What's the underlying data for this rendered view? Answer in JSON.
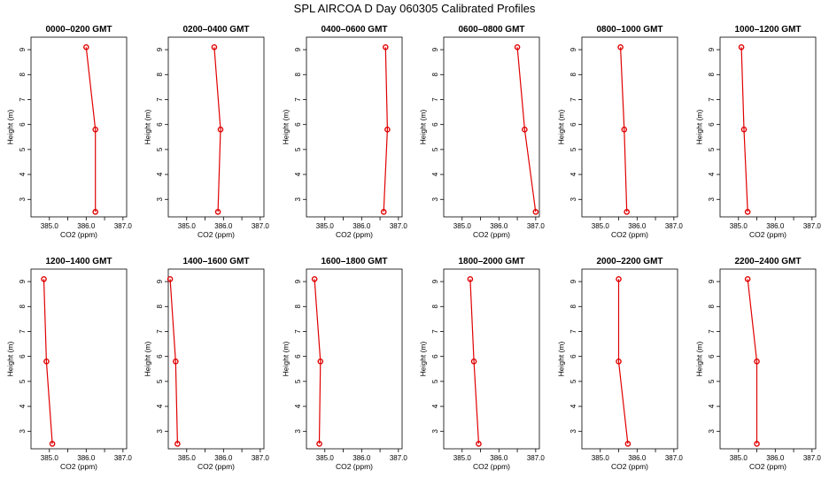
{
  "figure_title": "SPL AIRCOA D  Day 060305  Calibrated Profiles",
  "chart_data": [
    {
      "type": "line",
      "title": "0000–0200 GMT",
      "xlabel": "CO2 (ppm)",
      "ylabel": "Height (m)",
      "xlim": [
        384.5,
        387.1
      ],
      "ylim": [
        2.3,
        9.5
      ],
      "xticks": [
        385.0,
        386.0,
        387.0
      ],
      "xtick_labels": [
        "385.0",
        "386.0",
        "387.0"
      ],
      "yticks": [
        3,
        4,
        5,
        6,
        7,
        8,
        9
      ],
      "x": [
        386.0,
        386.25,
        386.25
      ],
      "y": [
        9.1,
        5.8,
        2.5
      ]
    },
    {
      "type": "line",
      "title": "0200–0400 GMT",
      "xlabel": "CO2 (ppm)",
      "ylabel": "Height (m)",
      "xlim": [
        384.5,
        387.1
      ],
      "ylim": [
        2.3,
        9.5
      ],
      "xticks": [
        385.0,
        386.0,
        387.0
      ],
      "xtick_labels": [
        "385.0",
        "386.0",
        "387.0"
      ],
      "yticks": [
        3,
        4,
        5,
        6,
        7,
        8,
        9
      ],
      "x": [
        385.75,
        385.92,
        385.85
      ],
      "y": [
        9.1,
        5.8,
        2.5
      ]
    },
    {
      "type": "line",
      "title": "0400–0600 GMT",
      "xlabel": "CO2 (ppm)",
      "ylabel": "Height (m)",
      "xlim": [
        384.5,
        387.1
      ],
      "ylim": [
        2.3,
        9.5
      ],
      "xticks": [
        385.0,
        386.0,
        387.0
      ],
      "xtick_labels": [
        "385.0",
        "386.0",
        "387.0"
      ],
      "yticks": [
        3,
        4,
        5,
        6,
        7,
        8,
        9
      ],
      "x": [
        386.65,
        386.7,
        386.6
      ],
      "y": [
        9.1,
        5.8,
        2.5
      ]
    },
    {
      "type": "line",
      "title": "0600–0800 GMT",
      "xlabel": "CO2 (ppm)",
      "ylabel": "Height (m)",
      "xlim": [
        384.5,
        387.1
      ],
      "ylim": [
        2.3,
        9.5
      ],
      "xticks": [
        385.0,
        386.0,
        387.0
      ],
      "xtick_labels": [
        "385.0",
        "386.0",
        "387.0"
      ],
      "yticks": [
        3,
        4,
        5,
        6,
        7,
        8,
        9
      ],
      "x": [
        386.5,
        386.7,
        387.0
      ],
      "y": [
        9.1,
        5.8,
        2.5
      ]
    },
    {
      "type": "line",
      "title": "0800–1000 GMT",
      "xlabel": "CO2 (ppm)",
      "ylabel": "Height (m)",
      "xlim": [
        384.5,
        387.1
      ],
      "ylim": [
        2.3,
        9.5
      ],
      "xticks": [
        385.0,
        386.0,
        387.0
      ],
      "xtick_labels": [
        "385.0",
        "386.0",
        "387.0"
      ],
      "yticks": [
        3,
        4,
        5,
        6,
        7,
        8,
        9
      ],
      "x": [
        385.55,
        385.65,
        385.72
      ],
      "y": [
        9.1,
        5.8,
        2.5
      ]
    },
    {
      "type": "line",
      "title": "1000–1200 GMT",
      "xlabel": "CO2 (ppm)",
      "ylabel": "Height (m)",
      "xlim": [
        384.5,
        387.1
      ],
      "ylim": [
        2.3,
        9.5
      ],
      "xticks": [
        385.0,
        386.0,
        387.0
      ],
      "xtick_labels": [
        "385.0",
        "386.0",
        "387.0"
      ],
      "yticks": [
        3,
        4,
        5,
        6,
        7,
        8,
        9
      ],
      "x": [
        385.08,
        385.15,
        385.25
      ],
      "y": [
        9.1,
        5.8,
        2.5
      ]
    },
    {
      "type": "line",
      "title": "1200–1400 GMT",
      "xlabel": "CO2 (ppm)",
      "ylabel": "Height (m)",
      "xlim": [
        384.5,
        387.1
      ],
      "ylim": [
        2.3,
        9.5
      ],
      "xticks": [
        385.0,
        386.0,
        387.0
      ],
      "xtick_labels": [
        "385.0",
        "386.0",
        "387.0"
      ],
      "yticks": [
        3,
        4,
        5,
        6,
        7,
        8,
        9
      ],
      "x": [
        384.85,
        384.92,
        385.08
      ],
      "y": [
        9.1,
        5.8,
        2.5
      ]
    },
    {
      "type": "line",
      "title": "1400–1600 GMT",
      "xlabel": "CO2 (ppm)",
      "ylabel": "Height (m)",
      "xlim": [
        384.5,
        387.1
      ],
      "ylim": [
        2.3,
        9.5
      ],
      "xticks": [
        385.0,
        386.0,
        387.0
      ],
      "xtick_labels": [
        "385.0",
        "386.0",
        "387.0"
      ],
      "yticks": [
        3,
        4,
        5,
        6,
        7,
        8,
        9
      ],
      "x": [
        384.55,
        384.7,
        384.75
      ],
      "y": [
        9.1,
        5.8,
        2.5
      ]
    },
    {
      "type": "line",
      "title": "1600–1800 GMT",
      "xlabel": "CO2 (ppm)",
      "ylabel": "Height (m)",
      "xlim": [
        384.5,
        387.1
      ],
      "ylim": [
        2.3,
        9.5
      ],
      "xticks": [
        385.0,
        386.0,
        387.0
      ],
      "xtick_labels": [
        "385.0",
        "386.0",
        "387.0"
      ],
      "yticks": [
        3,
        4,
        5,
        6,
        7,
        8,
        9
      ],
      "x": [
        384.72,
        384.88,
        384.85
      ],
      "y": [
        9.1,
        5.8,
        2.5
      ]
    },
    {
      "type": "line",
      "title": "1800–2000 GMT",
      "xlabel": "CO2 (ppm)",
      "ylabel": "Height (m)",
      "xlim": [
        384.5,
        387.1
      ],
      "ylim": [
        2.3,
        9.5
      ],
      "xticks": [
        385.0,
        386.0,
        387.0
      ],
      "xtick_labels": [
        "385.0",
        "386.0",
        "387.0"
      ],
      "yticks": [
        3,
        4,
        5,
        6,
        7,
        8,
        9
      ],
      "x": [
        385.22,
        385.32,
        385.45
      ],
      "y": [
        9.1,
        5.8,
        2.5
      ]
    },
    {
      "type": "line",
      "title": "2000–2200 GMT",
      "xlabel": "CO2 (ppm)",
      "ylabel": "Height (m)",
      "xlim": [
        384.5,
        387.1
      ],
      "ylim": [
        2.3,
        9.5
      ],
      "xticks": [
        385.0,
        386.0,
        387.0
      ],
      "xtick_labels": [
        "385.0",
        "386.0",
        "387.0"
      ],
      "yticks": [
        3,
        4,
        5,
        6,
        7,
        8,
        9
      ],
      "x": [
        385.5,
        385.5,
        385.75
      ],
      "y": [
        9.1,
        5.8,
        2.5
      ]
    },
    {
      "type": "line",
      "title": "2200–2400 GMT",
      "xlabel": "CO2 (ppm)",
      "ylabel": "Height (m)",
      "xlim": [
        384.5,
        387.1
      ],
      "ylim": [
        2.3,
        9.5
      ],
      "xticks": [
        385.0,
        386.0,
        387.0
      ],
      "xtick_labels": [
        "385.0",
        "386.0",
        "387.0"
      ],
      "yticks": [
        3,
        4,
        5,
        6,
        7,
        8,
        9
      ],
      "x": [
        385.25,
        385.5,
        385.5
      ],
      "y": [
        9.1,
        5.8,
        2.5
      ]
    }
  ],
  "colors": {
    "series": "#e00000",
    "axes": "#000000",
    "background": "#ffffff"
  },
  "grid": false,
  "layout_grid": {
    "rows": 2,
    "cols": 6
  }
}
